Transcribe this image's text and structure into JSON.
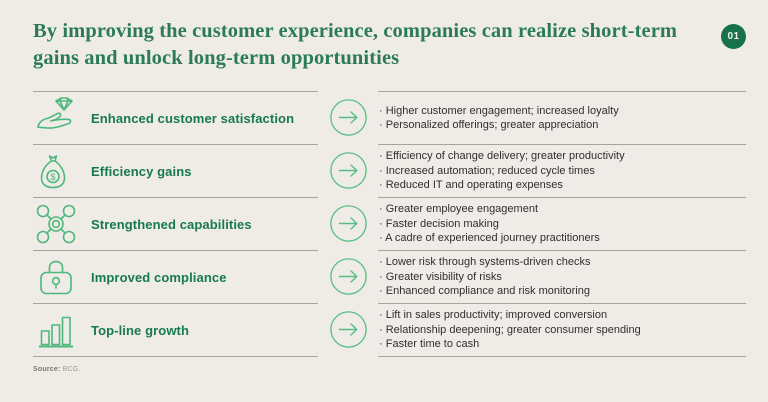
{
  "header": {
    "title": "By improving the customer experience, companies can realize short-term gains and unlock long-term opportunities",
    "badge": "01"
  },
  "rows": [
    {
      "icon": "hand-holding-diamond-icon",
      "label": "Enhanced customer satisfaction",
      "bullets": [
        "Higher customer engagement; increased loyalty",
        "Personalized offerings; greater appreciation"
      ]
    },
    {
      "icon": "money-bag-icon",
      "label": "Efficiency gains",
      "bullets": [
        "Efficiency of change delivery; greater productivity",
        "Increased automation; reduced cycle times",
        "Reduced IT and operating expenses"
      ]
    },
    {
      "icon": "network-nodes-icon",
      "label": "Strengthened capabilities",
      "bullets": [
        "Greater employee engagement",
        "Faster decision making",
        "A cadre of experienced journey practitioners"
      ]
    },
    {
      "icon": "padlock-icon",
      "label": "Improved compliance",
      "bullets": [
        "Lower risk through systems-driven checks",
        "Greater visibility of risks",
        "Enhanced compliance and risk monitoring"
      ]
    },
    {
      "icon": "bar-chart-icon",
      "label": "Top-line growth",
      "bullets": [
        "Lift in sales productivity; improved conversion",
        "Relationship deepening; greater consumer spending",
        "Faster time to cash"
      ]
    }
  ],
  "footer": {
    "source_label": "Source:",
    "source_value": "BCG."
  },
  "colors": {
    "background": "#efece7",
    "title_green": "#2b7b59",
    "badge_green": "#17724a",
    "label_green": "#17794f",
    "icon_green": "#4db87c",
    "arrow_green": "#56bd83",
    "divider_gray": "#a7a49e",
    "bullet_text": "#2f2f2f"
  }
}
